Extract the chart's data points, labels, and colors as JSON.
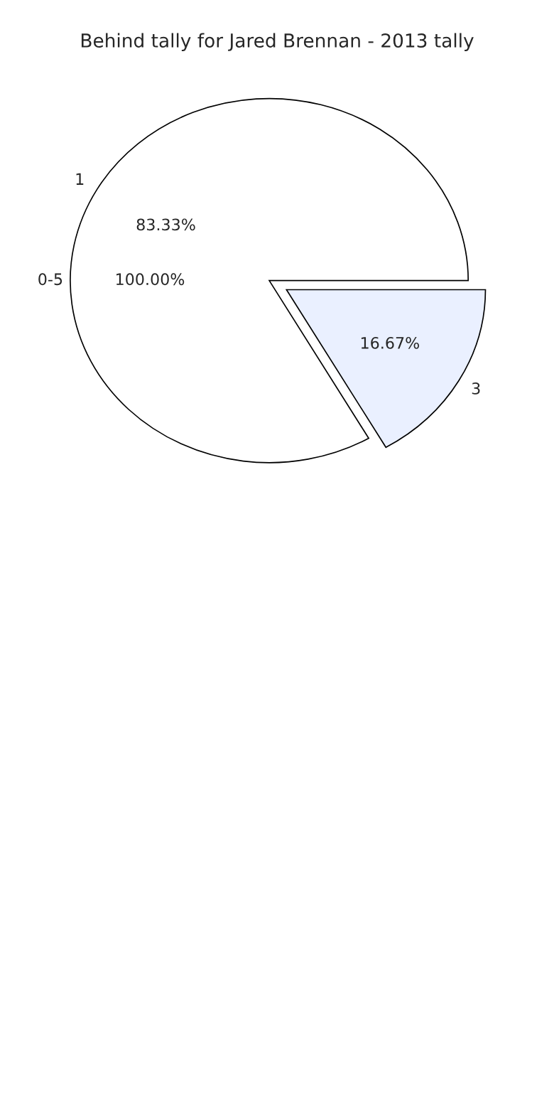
{
  "chart_data": {
    "type": "pie",
    "title": "Behind tally for Jared Brennan - 2013 tally",
    "categories": [
      "1",
      "3"
    ],
    "values": [
      83.33,
      16.67
    ],
    "colors": [
      "#ffffff",
      "#eaf0ff"
    ],
    "value_labels": [
      "83.33%",
      "16.67%"
    ],
    "annotations": [
      "0-5",
      "100.00%"
    ]
  }
}
